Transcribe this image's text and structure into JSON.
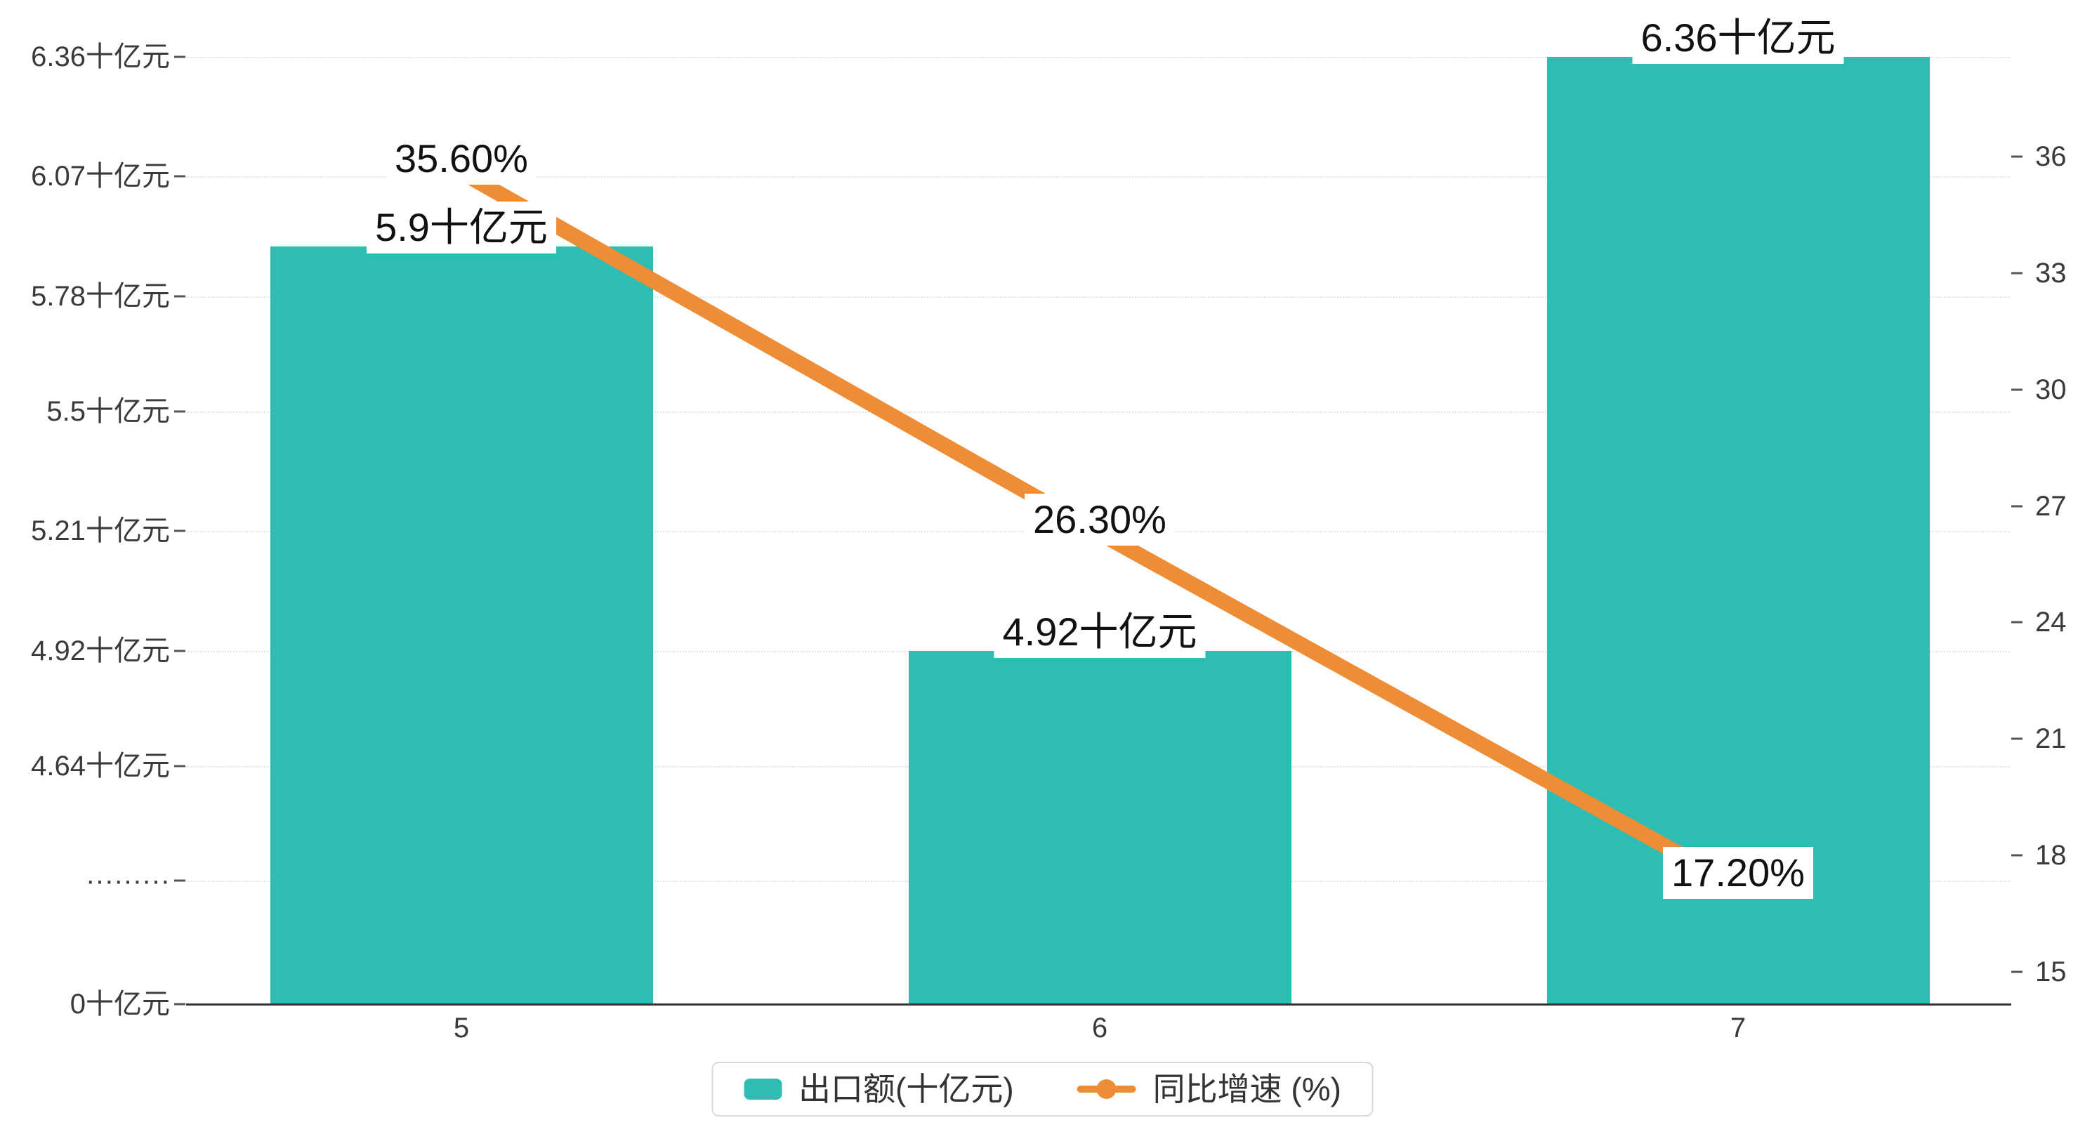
{
  "chart_data": {
    "type": "bar",
    "combo": "bar+line",
    "categories": [
      "5",
      "6",
      "7"
    ],
    "series": [
      {
        "name": "出口额(十亿元)",
        "type": "bar",
        "axis": "left",
        "color": "#2EBDB3",
        "values": [
          5.9,
          4.92,
          6.36
        ],
        "labels": [
          "5.9十亿元",
          "4.92十亿元",
          "6.36十亿元"
        ]
      },
      {
        "name": "同比增速 (%)",
        "type": "line",
        "axis": "right",
        "color": "#EE8D35",
        "values": [
          35.6,
          26.3,
          17.2
        ],
        "labels": [
          "35.60%",
          "26.30%",
          "17.20%"
        ]
      }
    ],
    "left_axis": {
      "labels": [
        "6.36十亿元",
        "6.07十亿元",
        "5.78十亿元",
        "5.5十亿元",
        "5.21十亿元",
        "4.92十亿元",
        "4.64十亿元",
        "·········",
        "0十亿元"
      ],
      "values": [
        6.36,
        6.07,
        5.78,
        5.5,
        5.21,
        4.92,
        4.64,
        null,
        0
      ],
      "axis_break": true
    },
    "right_axis": {
      "ticks": [
        36,
        33,
        30,
        27,
        24,
        21,
        18,
        15
      ]
    },
    "legend_position": "bottom",
    "grid": true,
    "title": ""
  }
}
